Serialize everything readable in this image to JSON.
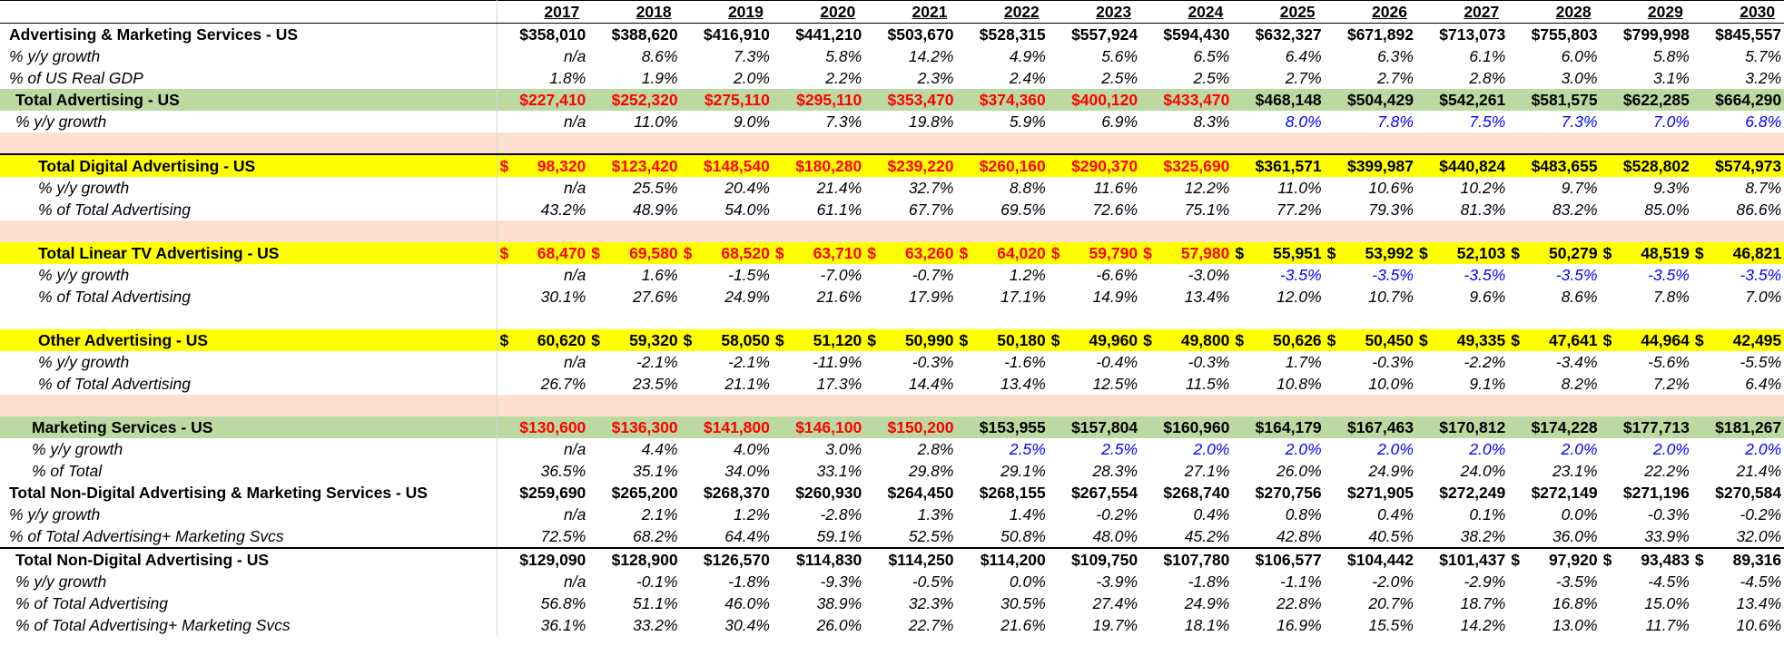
{
  "years": [
    "2017",
    "2018",
    "2019",
    "2020",
    "2021",
    "2022",
    "2023",
    "2024",
    "2025",
    "2026",
    "2027",
    "2028",
    "2029",
    "2030"
  ],
  "rows": [
    {
      "kind": "data",
      "label": "Advertising & Marketing Services - US",
      "style": "b",
      "values": [
        "$358,010",
        "$388,620",
        "$416,910",
        "$441,210",
        "$503,670",
        "$528,315",
        "$557,924",
        "$594,430",
        "$632,327",
        "$671,892",
        "$713,073",
        "$755,803",
        "$799,998",
        "$845,557"
      ]
    },
    {
      "kind": "data",
      "label": "% y/y growth",
      "style": "i",
      "values": [
        "n/a",
        "8.6%",
        "7.3%",
        "5.8%",
        "14.2%",
        "4.9%",
        "5.6%",
        "6.5%",
        "6.4%",
        "6.3%",
        "6.1%",
        "6.0%",
        "5.8%",
        "5.7%"
      ]
    },
    {
      "kind": "data",
      "label": "% of US Real GDP",
      "style": "i",
      "values": [
        "1.8%",
        "1.9%",
        "2.0%",
        "2.2%",
        "2.3%",
        "2.4%",
        "2.5%",
        "2.5%",
        "2.7%",
        "2.7%",
        "2.8%",
        "3.0%",
        "3.1%",
        "3.2%"
      ]
    },
    {
      "kind": "data",
      "label": "Total Advertising - US",
      "style": "b ind1",
      "fill": "green",
      "red_upto": 8,
      "values": [
        "$227,410",
        "$252,320",
        "$275,110",
        "$295,110",
        "$353,470",
        "$374,360",
        "$400,120",
        "$433,470",
        "$468,148",
        "$504,429",
        "$542,261",
        "$581,575",
        "$622,285",
        "$664,290"
      ]
    },
    {
      "kind": "data",
      "label": "% y/y growth",
      "style": "i ind1",
      "blue_from": 8,
      "values": [
        "n/a",
        "11.0%",
        "9.0%",
        "7.3%",
        "19.8%",
        "5.9%",
        "6.9%",
        "8.3%",
        "8.0%",
        "7.8%",
        "7.5%",
        "7.3%",
        "7.0%",
        "6.8%"
      ]
    },
    {
      "kind": "blank",
      "fill": "peach"
    },
    {
      "kind": "data",
      "label": "Total Digital Advertising - US",
      "style": "b ind2",
      "fill": "yellow",
      "red_upto": 8,
      "sep": true,
      "values": [
        "$ 98,320",
        "$123,420",
        "$148,540",
        "$180,280",
        "$239,220",
        "$260,160",
        "$290,370",
        "$325,690",
        "$361,571",
        "$399,987",
        "$440,824",
        "$483,655",
        "$528,802",
        "$574,973"
      ]
    },
    {
      "kind": "data",
      "label": "% y/y growth",
      "style": "i ind2",
      "values": [
        "n/a",
        "25.5%",
        "20.4%",
        "21.4%",
        "32.7%",
        "8.8%",
        "11.6%",
        "12.2%",
        "11.0%",
        "10.6%",
        "10.2%",
        "9.7%",
        "9.3%",
        "8.7%"
      ]
    },
    {
      "kind": "data",
      "label": "% of Total Advertising",
      "style": "i ind2",
      "values": [
        "43.2%",
        "48.9%",
        "54.0%",
        "61.1%",
        "67.7%",
        "69.5%",
        "72.6%",
        "75.1%",
        "77.2%",
        "79.3%",
        "81.3%",
        "83.2%",
        "85.0%",
        "86.6%"
      ]
    },
    {
      "kind": "blank",
      "fill": "peach"
    },
    {
      "kind": "data",
      "label": "Total Linear TV Advertising - US",
      "style": "b ind2",
      "fill": "yellow",
      "red_upto": 8,
      "values": [
        "$ 68,470",
        "$ 69,580",
        "$ 68,520",
        "$ 63,710",
        "$ 63,260",
        "$ 64,020",
        "$ 59,790",
        "$ 57,980",
        "$ 55,951",
        "$ 53,992",
        "$ 52,103",
        "$ 50,279",
        "$ 48,519",
        "$ 46,821"
      ]
    },
    {
      "kind": "data",
      "label": "% y/y growth",
      "style": "i ind2",
      "blue_from": 8,
      "values": [
        "n/a",
        "1.6%",
        "-1.5%",
        "-7.0%",
        "-0.7%",
        "1.2%",
        "-6.6%",
        "-3.0%",
        "-3.5%",
        "-3.5%",
        "-3.5%",
        "-3.5%",
        "-3.5%",
        "-3.5%"
      ]
    },
    {
      "kind": "data",
      "label": "% of Total Advertising",
      "style": "i ind2",
      "values": [
        "30.1%",
        "27.6%",
        "24.9%",
        "21.6%",
        "17.9%",
        "17.1%",
        "14.9%",
        "13.4%",
        "12.0%",
        "10.7%",
        "9.6%",
        "8.6%",
        "7.8%",
        "7.0%"
      ]
    },
    {
      "kind": "blank",
      "fill": "white"
    },
    {
      "kind": "data",
      "label": "Other Advertising - US",
      "style": "b ind2",
      "fill": "yellow",
      "values": [
        "$ 60,620",
        "$ 59,320",
        "$ 58,050",
        "$ 51,120",
        "$ 50,990",
        "$ 50,180",
        "$ 49,960",
        "$ 49,800",
        "$ 50,626",
        "$ 50,450",
        "$ 49,335",
        "$ 47,641",
        "$ 44,964",
        "$ 42,495"
      ]
    },
    {
      "kind": "data",
      "label": "% y/y growth",
      "style": "i ind2",
      "values": [
        "n/a",
        "-2.1%",
        "-2.1%",
        "-11.9%",
        "-0.3%",
        "-1.6%",
        "-0.4%",
        "-0.3%",
        "1.7%",
        "-0.3%",
        "-2.2%",
        "-3.4%",
        "-5.6%",
        "-5.5%"
      ]
    },
    {
      "kind": "data",
      "label": "% of Total Advertising",
      "style": "i ind2",
      "values": [
        "26.7%",
        "23.5%",
        "21.1%",
        "17.3%",
        "14.4%",
        "13.4%",
        "12.5%",
        "11.5%",
        "10.8%",
        "10.0%",
        "9.1%",
        "8.2%",
        "7.2%",
        "6.4%"
      ]
    },
    {
      "kind": "blank",
      "fill": "peach"
    },
    {
      "kind": "data",
      "label": "Marketing Services - US",
      "style": "b ind3",
      "fill": "green",
      "red_upto": 5,
      "corner": true,
      "values": [
        "$130,600",
        "$136,300",
        "$141,800",
        "$146,100",
        "$150,200",
        "$153,955",
        "$157,804",
        "$160,960",
        "$164,179",
        "$167,463",
        "$170,812",
        "$174,228",
        "$177,713",
        "$181,267"
      ]
    },
    {
      "kind": "data",
      "label": "% y/y growth",
      "style": "i ind3",
      "blue_from": 5,
      "values": [
        "n/a",
        "4.4%",
        "4.0%",
        "3.0%",
        "2.8%",
        "2.5%",
        "2.5%",
        "2.0%",
        "2.0%",
        "2.0%",
        "2.0%",
        "2.0%",
        "2.0%",
        "2.0%"
      ]
    },
    {
      "kind": "data",
      "label": "% of Total",
      "style": "i ind3",
      "values": [
        "36.5%",
        "35.1%",
        "34.0%",
        "33.1%",
        "29.8%",
        "29.1%",
        "28.3%",
        "27.1%",
        "26.0%",
        "24.9%",
        "24.0%",
        "23.1%",
        "22.2%",
        "21.4%"
      ]
    },
    {
      "kind": "data",
      "label": "Total Non-Digital Advertising & Marketing Services - US",
      "style": "b",
      "values": [
        "$259,690",
        "$265,200",
        "$268,370",
        "$260,930",
        "$264,450",
        "$268,155",
        "$267,554",
        "$268,740",
        "$270,756",
        "$271,905",
        "$272,249",
        "$272,149",
        "$271,196",
        "$270,584"
      ]
    },
    {
      "kind": "data",
      "label": "% y/y growth",
      "style": "i",
      "values": [
        "n/a",
        "2.1%",
        "1.2%",
        "-2.8%",
        "1.3%",
        "1.4%",
        "-0.2%",
        "0.4%",
        "0.8%",
        "0.4%",
        "0.1%",
        "0.0%",
        "-0.3%",
        "-0.2%"
      ]
    },
    {
      "kind": "data",
      "label": "% of Total Advertising+ Marketing Svcs",
      "style": "i",
      "values": [
        "72.5%",
        "68.2%",
        "64.4%",
        "59.1%",
        "52.5%",
        "50.8%",
        "48.0%",
        "45.2%",
        "42.8%",
        "40.5%",
        "38.2%",
        "36.0%",
        "33.9%",
        "32.0%"
      ]
    },
    {
      "kind": "data",
      "label": "Total Non-Digital Advertising - US",
      "style": "b ind1",
      "sep": true,
      "values": [
        "$129,090",
        "$128,900",
        "$126,570",
        "$114,830",
        "$114,250",
        "$114,200",
        "$109,750",
        "$107,780",
        "$106,577",
        "$104,442",
        "$101,437",
        "$ 97,920",
        "$ 93,483",
        "$ 89,316"
      ]
    },
    {
      "kind": "data",
      "label": "% y/y growth",
      "style": "i ind1",
      "values": [
        "n/a",
        "-0.1%",
        "-1.8%",
        "-9.3%",
        "-0.5%",
        "0.0%",
        "-3.9%",
        "-1.8%",
        "-1.1%",
        "-2.0%",
        "-2.9%",
        "-3.5%",
        "-4.5%",
        "-4.5%"
      ]
    },
    {
      "kind": "data",
      "label": "% of Total Advertising",
      "style": "i ind1",
      "values": [
        "56.8%",
        "51.1%",
        "46.0%",
        "38.9%",
        "32.3%",
        "30.5%",
        "27.4%",
        "24.9%",
        "22.8%",
        "20.7%",
        "18.7%",
        "16.8%",
        "15.0%",
        "13.4%"
      ]
    },
    {
      "kind": "data",
      "label": "% of Total Advertising+ Marketing Svcs",
      "style": "i ind1",
      "values": [
        "36.1%",
        "33.2%",
        "30.4%",
        "26.0%",
        "22.7%",
        "21.6%",
        "19.7%",
        "18.1%",
        "16.9%",
        "15.5%",
        "14.2%",
        "13.0%",
        "11.7%",
        "10.6%"
      ]
    }
  ]
}
